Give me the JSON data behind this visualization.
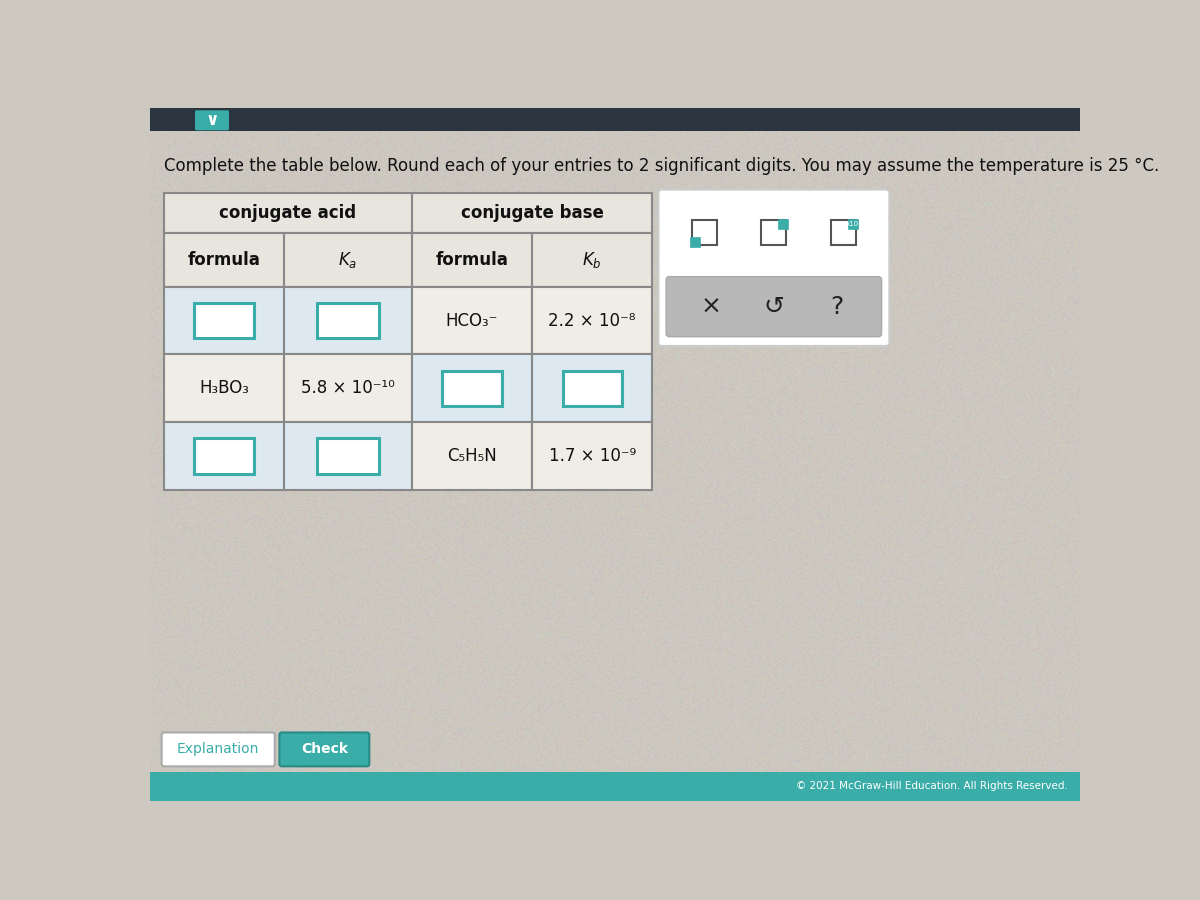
{
  "title": "Complete the table below. Round each of your entries to 2 significant digits. You may assume the temperature is 25 °C.",
  "page_bg": "#cdc8c0",
  "table_header_bg": "#e8e4de",
  "table_data_bg": "#f0ece6",
  "table_input_bg": "#dde8f0",
  "teal_color": "#3aada8",
  "dark_teal": "#2a8a85",
  "top_bar_color": "#1a3a5c",
  "teal_btn_color": "#3aada8",
  "copyright": "© 2021 McGraw-Hill Education. All Rights Reserved.",
  "rows_info": [
    [
      null,
      null,
      "HCO₃⁻",
      "2.2 × 10⁻⁸"
    ],
    [
      "H₃BO₃",
      "5.8 × 10⁻¹⁰",
      null,
      null
    ],
    [
      null,
      null,
      "C₅H₅N",
      "1.7 × 10⁻⁹"
    ]
  ]
}
